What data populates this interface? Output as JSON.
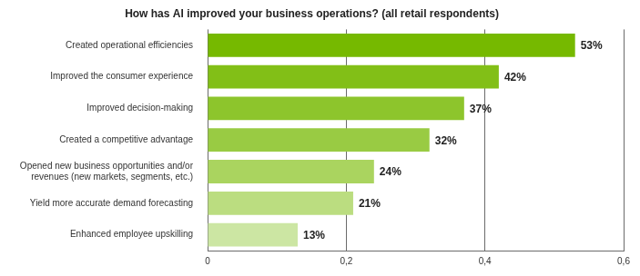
{
  "chart_data": {
    "type": "bar",
    "orientation": "horizontal",
    "title": "How has AI improved your business operations? (all retail respondents)",
    "categories": [
      "Created operational efficiencies",
      "Improved the consumer experience",
      "Improved decision-making",
      "Created a competitive advantage",
      "Opened new business opportunities and/or revenues (new markets, segments, etc.)",
      "Yield more accurate demand forecasting",
      "Enhanced employee upskilling"
    ],
    "values": [
      0.53,
      0.42,
      0.37,
      0.32,
      0.24,
      0.21,
      0.13
    ],
    "value_labels": [
      "53%",
      "42%",
      "37%",
      "32%",
      "24%",
      "21%",
      "13%"
    ],
    "colors": [
      "#76b900",
      "#82bf17",
      "#8dc52c",
      "#99cb43",
      "#aad45f",
      "#bbdd80",
      "#cce6a3"
    ],
    "xlim": [
      0,
      0.6
    ],
    "xticks": [
      0,
      {
        "value": 0.2,
        "label": "0,2"
      },
      {
        "value": 0.4,
        "label": "0,4"
      },
      {
        "value": 0.6,
        "label": "0,6"
      }
    ],
    "grid": true,
    "data_labels": true
  }
}
